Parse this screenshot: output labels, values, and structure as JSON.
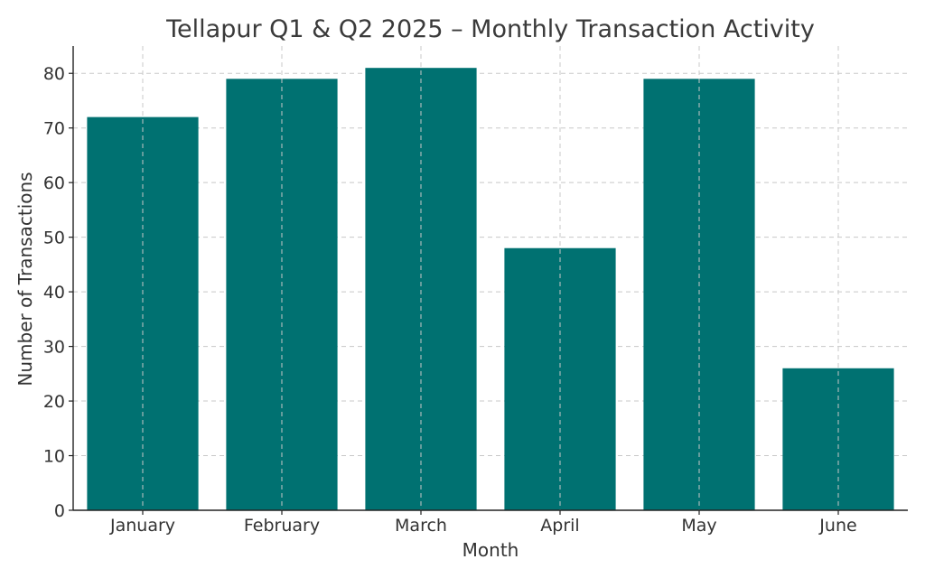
{
  "chart_data": {
    "type": "bar",
    "title": "Tellapur Q1 & Q2 2025 – Monthly Transaction Activity",
    "xlabel": "Month",
    "ylabel": "Number of Transactions",
    "categories": [
      "January",
      "February",
      "March",
      "April",
      "May",
      "June"
    ],
    "values": [
      72,
      79,
      81,
      48,
      79,
      26
    ],
    "ylim": [
      0,
      85
    ],
    "yticks": [
      0,
      10,
      20,
      30,
      40,
      50,
      60,
      70,
      80
    ],
    "grid": true,
    "bar_color": "#007171"
  }
}
